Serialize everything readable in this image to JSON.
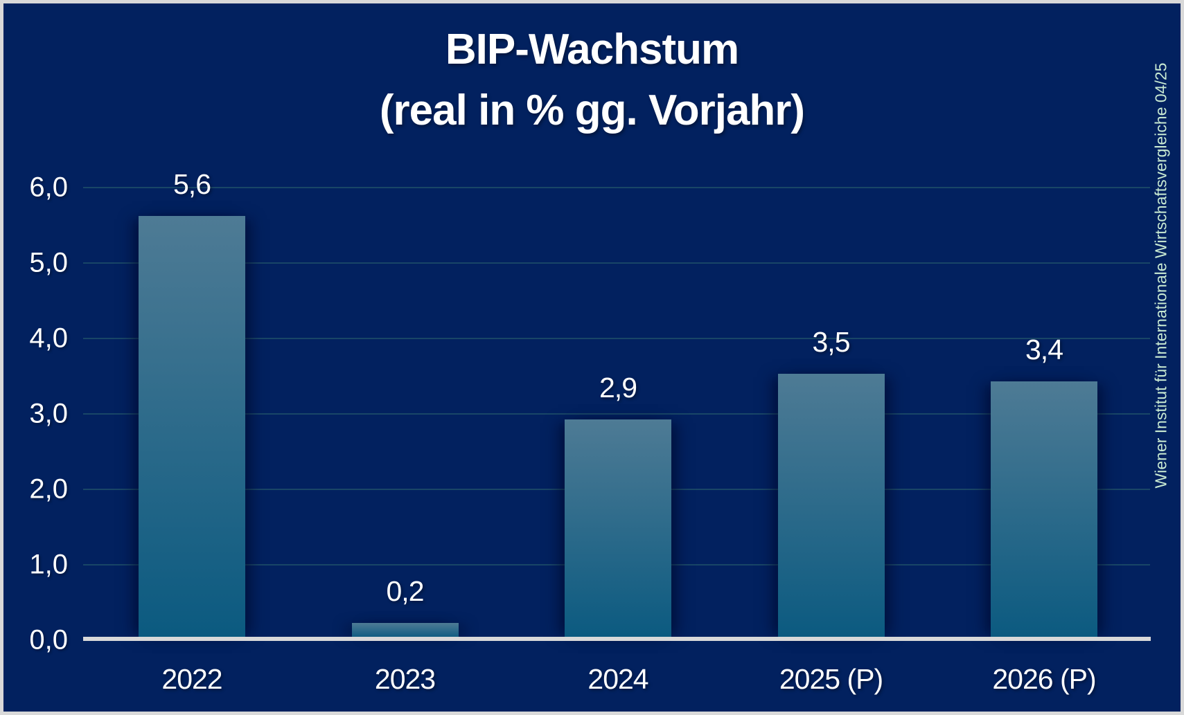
{
  "title": {
    "line1": "BIP-Wachstum",
    "line2": "(real in % gg. Vorjahr)"
  },
  "source_note": "Wiener Institut für Internationale Wirtschaftsvergleiche 04/25",
  "colors": {
    "background": "#02215F",
    "bar_gradient_top": "#4E7B95",
    "bar_gradient_bottom": "#0B5A80",
    "axis_line": "#D9D9D9",
    "frame_border": "#D9D9D9",
    "gridline": "rgba(70,140,120,0.35)",
    "text": "#FFFFFF",
    "source_text": "#C9EAD2"
  },
  "chart_data": {
    "type": "bar",
    "title": "BIP-Wachstum (real in % gg. Vorjahr)",
    "categories": [
      "2022",
      "2023",
      "2024",
      "2025 (P)",
      "2026 (P)"
    ],
    "values": [
      5.6,
      0.2,
      2.9,
      3.5,
      3.4
    ],
    "value_labels": [
      "5,6",
      "0,2",
      "2,9",
      "3,5",
      "3,4"
    ],
    "unit": "percent, real, year-on-year",
    "ylim": [
      0,
      6
    ],
    "y_tick_step": 1.0,
    "y_tick_labels": [
      "0,0",
      "1,0",
      "2,0",
      "3,0",
      "4,0",
      "5,0",
      "6,0"
    ],
    "grid": true,
    "legend": "none",
    "decimal_separator": "comma"
  }
}
